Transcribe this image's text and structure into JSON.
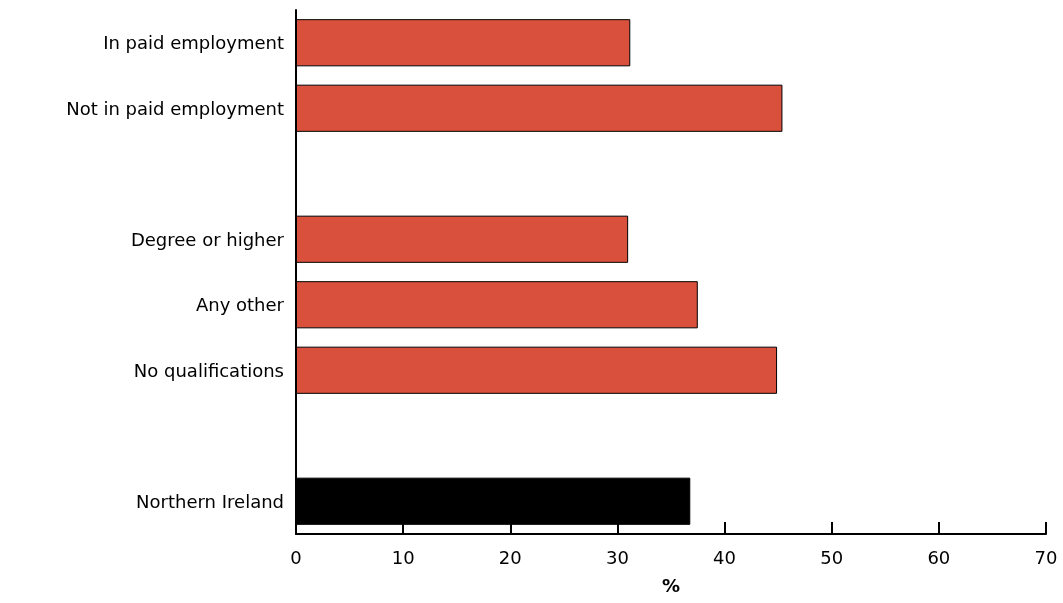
{
  "chart_data": {
    "type": "bar",
    "orientation": "horizontal",
    "xlabel": "%",
    "categories": [
      "In paid employment",
      "Not in paid employment",
      null,
      "Degree or higher",
      "Any other",
      "No qualifications",
      null,
      "Northern Ireland"
    ],
    "values": [
      31.2,
      45.4,
      null,
      31.0,
      37.5,
      44.9,
      null,
      36.8
    ],
    "colors": [
      "#d9503c",
      "#d9503c",
      "#d9503c",
      "#d9503c",
      "#d9503c",
      "#d9503c",
      "#d9503c",
      "#000000"
    ],
    "xlim": [
      0,
      70
    ],
    "xticks": [
      0,
      10,
      20,
      30,
      40,
      50,
      60,
      70
    ],
    "grid": false
  }
}
